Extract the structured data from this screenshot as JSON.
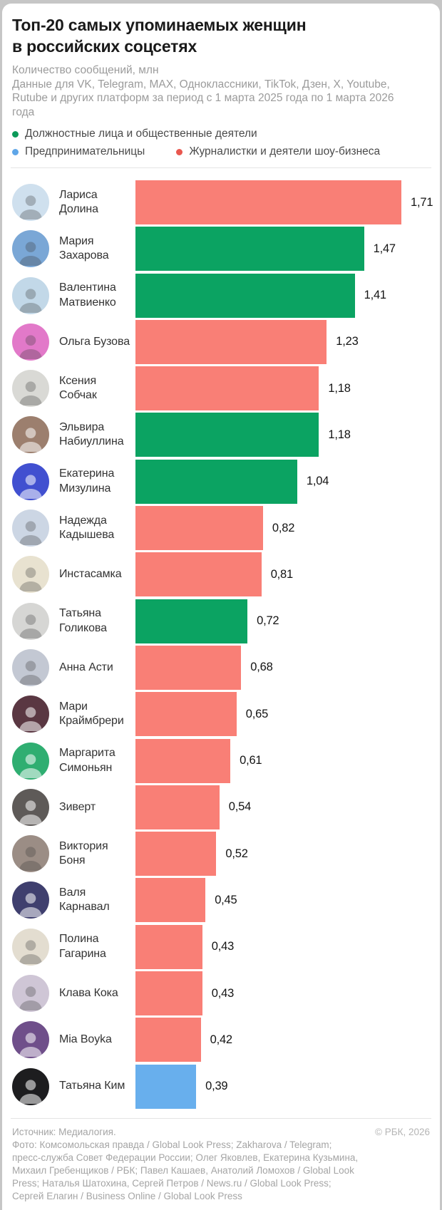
{
  "header": {
    "title": "Топ-20 самых упоминаемых женщин\nв российских соцсетях",
    "subtitle_unit": "Количество сообщений, млн",
    "subtitle_scope": "Данные для VK, Telegram, MAX, Одноклассники, TikTok, Дзен, X, Youtube, Rutube и других платформ за период с 1 марта 2025 года по 1 марта 2026 года"
  },
  "legend": [
    {
      "label": "Должностные лица и общественные деятели",
      "color": "#0c9a59",
      "category": "official"
    },
    {
      "label": "Предпринимательницы",
      "color": "#5fa6e8",
      "category": "entrepreneur"
    },
    {
      "label": "Журналистки и деятели шоу-бизнеса",
      "color": "#e9574f",
      "category": "showbiz"
    }
  ],
  "colors": {
    "official": "#0ba362",
    "entrepreneur": "#68afed",
    "showbiz": "#f97f76"
  },
  "chart_data": {
    "type": "bar",
    "orientation": "horizontal",
    "title": "Топ-20 самых упоминаемых женщин в российских соцсетях",
    "unit": "млн сообщений",
    "xlim": [
      0,
      1.8
    ],
    "max_value": 1.71,
    "value_format": "decimal-comma",
    "legend_position": "top",
    "grid": false,
    "rows": [
      {
        "rank": 1,
        "name": "Лариса Долина",
        "value": 1.71,
        "label": "1,71",
        "category": "showbiz",
        "avatar_color": "#cfe0ee"
      },
      {
        "rank": 2,
        "name": "Мария Захарова",
        "value": 1.47,
        "label": "1,47",
        "category": "official",
        "avatar_color": "#7aa7d6"
      },
      {
        "rank": 3,
        "name": "Валентина Матвиенко",
        "value": 1.41,
        "label": "1,41",
        "category": "official",
        "avatar_color": "#c2d8e8"
      },
      {
        "rank": 4,
        "name": "Ольга Бузова",
        "value": 1.23,
        "label": "1,23",
        "category": "showbiz",
        "avatar_color": "#e279c9"
      },
      {
        "rank": 5,
        "name": "Ксения Собчак",
        "value": 1.18,
        "label": "1,18",
        "category": "showbiz",
        "avatar_color": "#d9d9d5"
      },
      {
        "rank": 6,
        "name": "Эльвира Набиуллина",
        "value": 1.18,
        "label": "1,18",
        "category": "official",
        "avatar_color": "#9c7f6e"
      },
      {
        "rank": 7,
        "name": "Екатерина Мизулина",
        "value": 1.04,
        "label": "1,04",
        "category": "official",
        "avatar_color": "#4150d0"
      },
      {
        "rank": 8,
        "name": "Надежда Кадышева",
        "value": 0.82,
        "label": "0,82",
        "category": "showbiz",
        "avatar_color": "#ccd6e4"
      },
      {
        "rank": 9,
        "name": "Инстасамка",
        "value": 0.81,
        "label": "0,81",
        "category": "showbiz",
        "avatar_color": "#e8e2d0"
      },
      {
        "rank": 10,
        "name": "Татьяна Голикова",
        "value": 0.72,
        "label": "0,72",
        "category": "official",
        "avatar_color": "#d6d6d4"
      },
      {
        "rank": 11,
        "name": "Анна Асти",
        "value": 0.68,
        "label": "0,68",
        "category": "showbiz",
        "avatar_color": "#c3c8d3"
      },
      {
        "rank": 12,
        "name": "Мари Краймбрери",
        "value": 0.65,
        "label": "0,65",
        "category": "showbiz",
        "avatar_color": "#5a3742"
      },
      {
        "rank": 13,
        "name": "Маргарита Симоньян",
        "value": 0.61,
        "label": "0,61",
        "category": "showbiz",
        "avatar_color": "#2fae71"
      },
      {
        "rank": 14,
        "name": "Зиверт",
        "value": 0.54,
        "label": "0,54",
        "category": "showbiz",
        "avatar_color": "#5e5a58"
      },
      {
        "rank": 15,
        "name": "Виктория Боня",
        "value": 0.52,
        "label": "0,52",
        "category": "showbiz",
        "avatar_color": "#9b8d85"
      },
      {
        "rank": 16,
        "name": "Валя Карнавал",
        "value": 0.45,
        "label": "0,45",
        "category": "showbiz",
        "avatar_color": "#3f3f6e"
      },
      {
        "rank": 17,
        "name": "Полина Гагарина",
        "value": 0.43,
        "label": "0,43",
        "category": "showbiz",
        "avatar_color": "#e3ddd0"
      },
      {
        "rank": 18,
        "name": "Клава Кока",
        "value": 0.43,
        "label": "0,43",
        "category": "showbiz",
        "avatar_color": "#cfc6d6"
      },
      {
        "rank": 19,
        "name": "Mia Boyka",
        "value": 0.42,
        "label": "0,42",
        "category": "showbiz",
        "avatar_color": "#6f4f8a"
      },
      {
        "rank": 20,
        "name": "Татьяна Ким",
        "value": 0.39,
        "label": "0,39",
        "category": "entrepreneur",
        "avatar_color": "#1d1d1f"
      }
    ]
  },
  "footer": {
    "source": "Источник: Медиалогия.",
    "copyright": "© РБК, 2026",
    "credits": "Фото: Комсомольская правда / Global Look Press; Zakharova / Telegram; пресс-служба Совет Федерации России; Олег Яковлев, Екатерина Кузьмина, Михаил Гребенщиков / РБК; Павел Кашаев, Анатолий Ломохов / Global Look Press; Наталья Шатохина, Сергей Петров / News.ru / Global Look Press; Сергей Елагин / Business Online / Global Look Press"
  }
}
